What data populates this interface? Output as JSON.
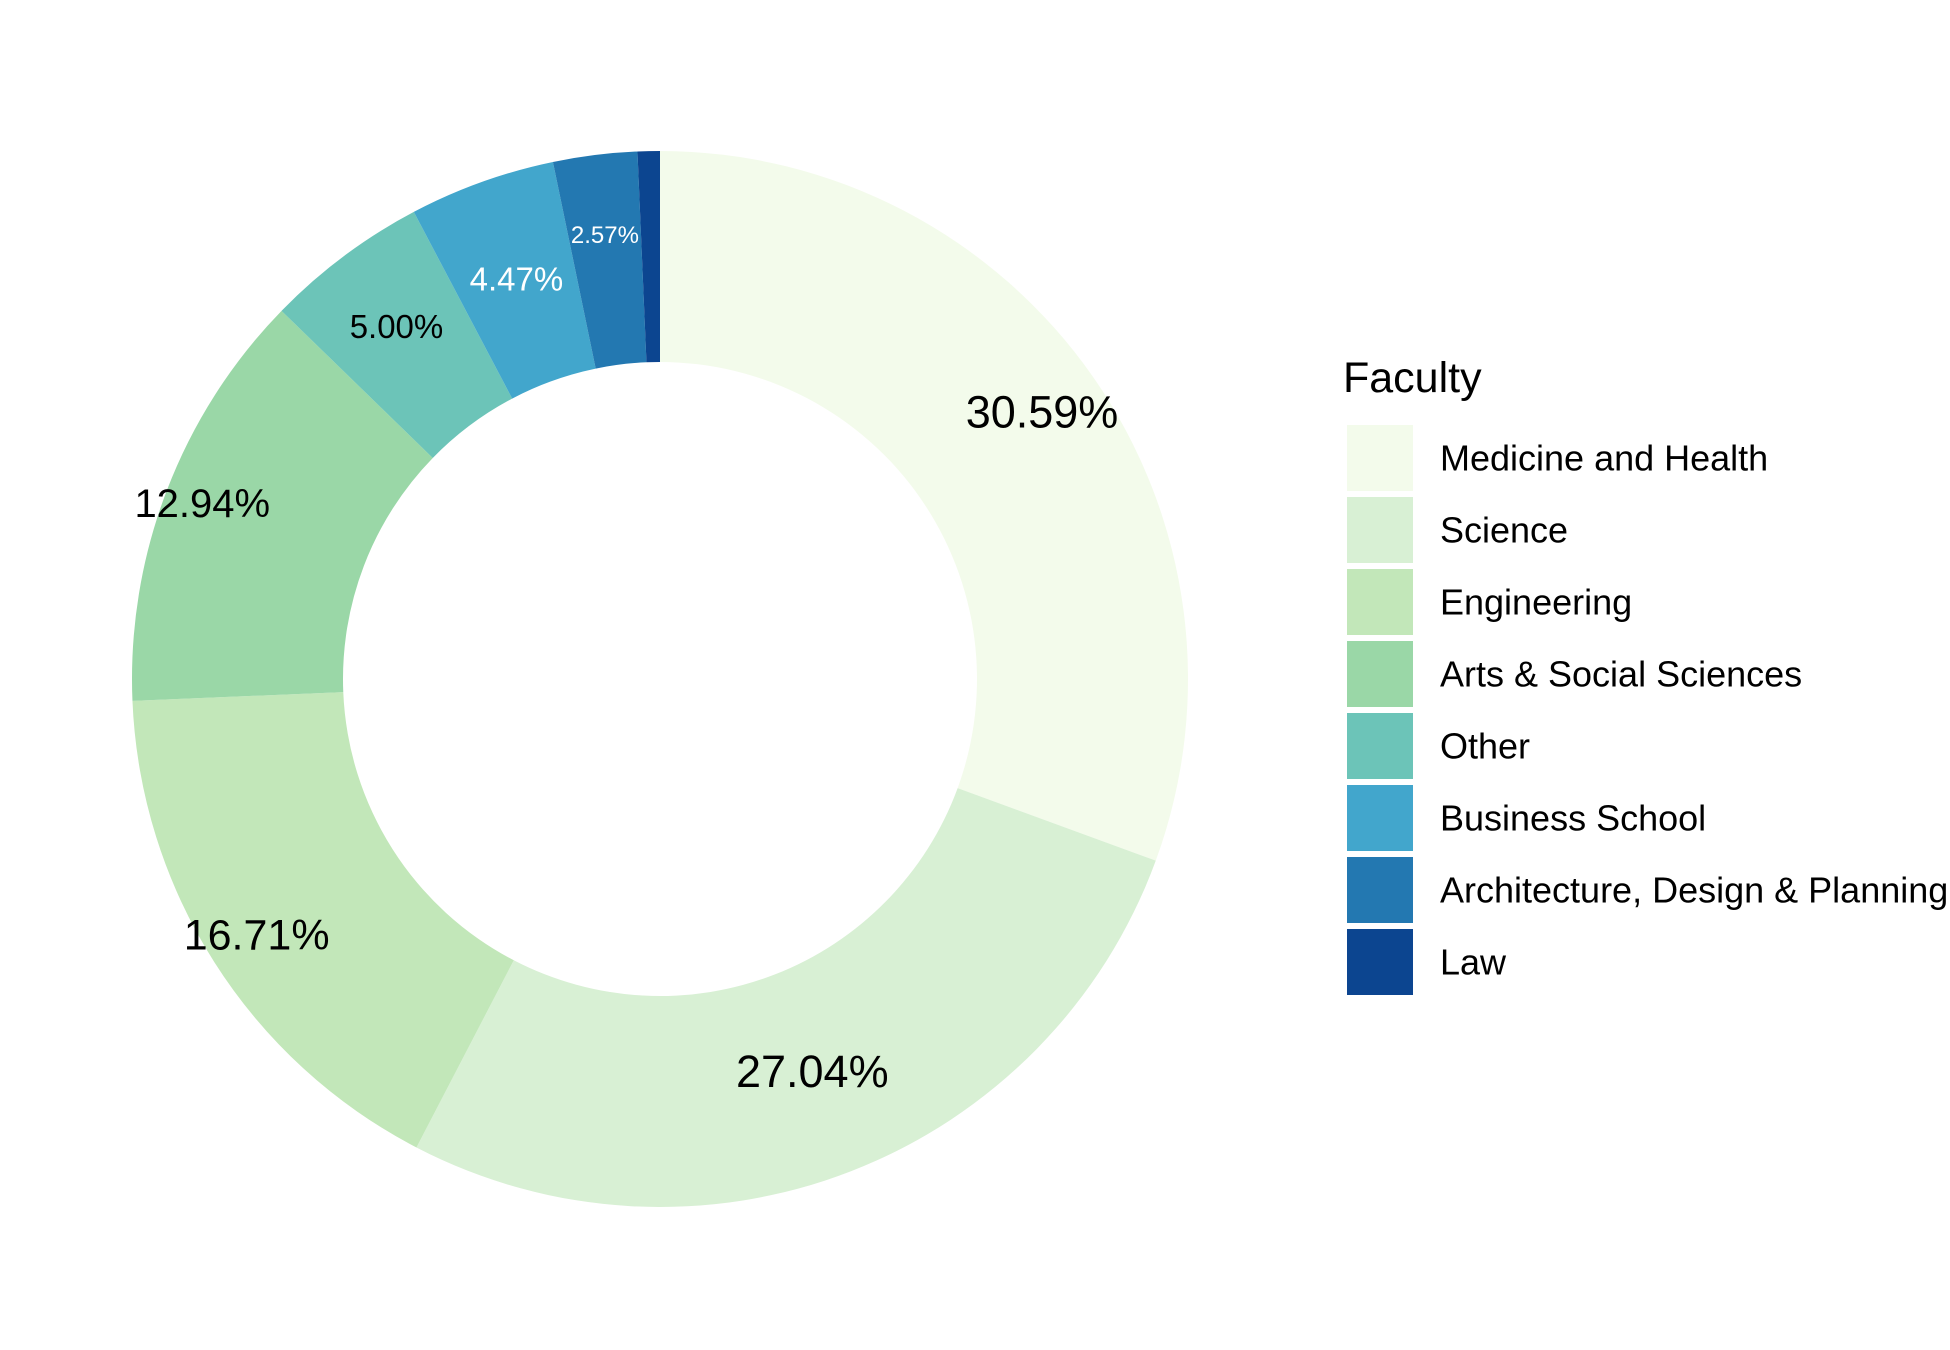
{
  "chart_data": {
    "type": "pie",
    "donut": true,
    "legend_title": "Faculty",
    "legend_position": "right",
    "slices": [
      {
        "name": "Medicine and Health",
        "value": 30.59,
        "label": "30.59%",
        "color": "#f3fbeb",
        "label_color": "#000000"
      },
      {
        "name": "Science",
        "value": 27.04,
        "label": "27.04%",
        "color": "#d8f0d4",
        "label_color": "#000000"
      },
      {
        "name": "Engineering",
        "value": 16.71,
        "label": "16.71%",
        "color": "#c2e7b9",
        "label_color": "#000000"
      },
      {
        "name": "Arts & Social Sciences",
        "value": 12.94,
        "label": "12.94%",
        "color": "#9ad7a7",
        "label_color": "#000000"
      },
      {
        "name": "Other",
        "value": 5.0,
        "label": "5.00%",
        "color": "#6cc4b8",
        "label_color": "#000000"
      },
      {
        "name": "Business School",
        "value": 4.47,
        "label": "4.47%",
        "color": "#42a6cc",
        "label_color": "#ffffff"
      },
      {
        "name": "Architecture, Design & Planning",
        "value": 2.57,
        "label": "2.57%",
        "color": "#2378b1",
        "label_color": "#ffffff"
      },
      {
        "name": "Law",
        "value": 0.68,
        "label": "",
        "color": "#0c4590",
        "label_color": "#ffffff"
      }
    ]
  }
}
